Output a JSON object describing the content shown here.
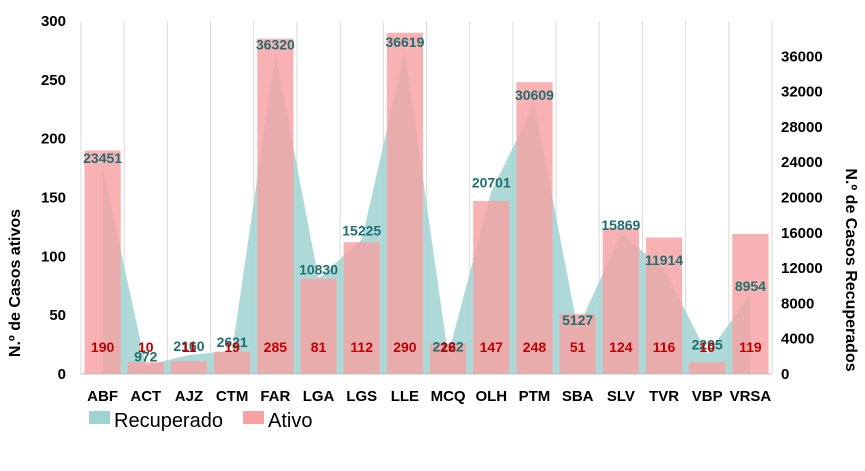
{
  "chart_data": {
    "type": "bar",
    "categories": [
      "ABF",
      "ACT",
      "AJZ",
      "CTM",
      "FAR",
      "LGA",
      "LGS",
      "LLE",
      "MCQ",
      "OLH",
      "PTM",
      "SBA",
      "SLV",
      "TVR",
      "VBP",
      "VRSA"
    ],
    "series": [
      {
        "name": "Recuperado",
        "type": "area",
        "axis": "right",
        "color": "#9fd3d1",
        "label_color": "#1f6f6f",
        "values": [
          23451,
          972,
          2160,
          2621,
          36320,
          10830,
          15225,
          36619,
          2122,
          20701,
          30609,
          5127,
          15869,
          11914,
          2295,
          8954
        ],
        "labels": [
          "23451",
          "972",
          "2160",
          "2621",
          "36320",
          "10830",
          "15225",
          "36619",
          "2122",
          "20701",
          "30609",
          "5127",
          "15869",
          "11914",
          "2295",
          "8954"
        ]
      },
      {
        "name": "Ativo",
        "type": "bar",
        "axis": "left",
        "color": "#f7a1a4",
        "label_color": "#c00000",
        "values": [
          190,
          10,
          11,
          19,
          285,
          81,
          112,
          290,
          26,
          147,
          248,
          51,
          124,
          116,
          10,
          119
        ],
        "labels": [
          "190",
          "10",
          "11",
          "19",
          "285",
          "81",
          "112",
          "290",
          "26",
          "147",
          "248",
          "51",
          "124",
          "116",
          "10",
          "119"
        ]
      }
    ],
    "ylabel": "N.º de Casos ativos",
    "y2label": "N.º de Casos Recuperados",
    "ylim": [
      0,
      300
    ],
    "y2lim": [
      0,
      40000
    ],
    "yticks": [
      "0",
      "50",
      "100",
      "150",
      "200",
      "250",
      "300"
    ],
    "y2ticks": [
      "0",
      "4000",
      "8000",
      "12000",
      "16000",
      "20000",
      "24000",
      "28000",
      "32000",
      "36000"
    ],
    "grid": "vertical",
    "legend_position": "bottom-left"
  }
}
